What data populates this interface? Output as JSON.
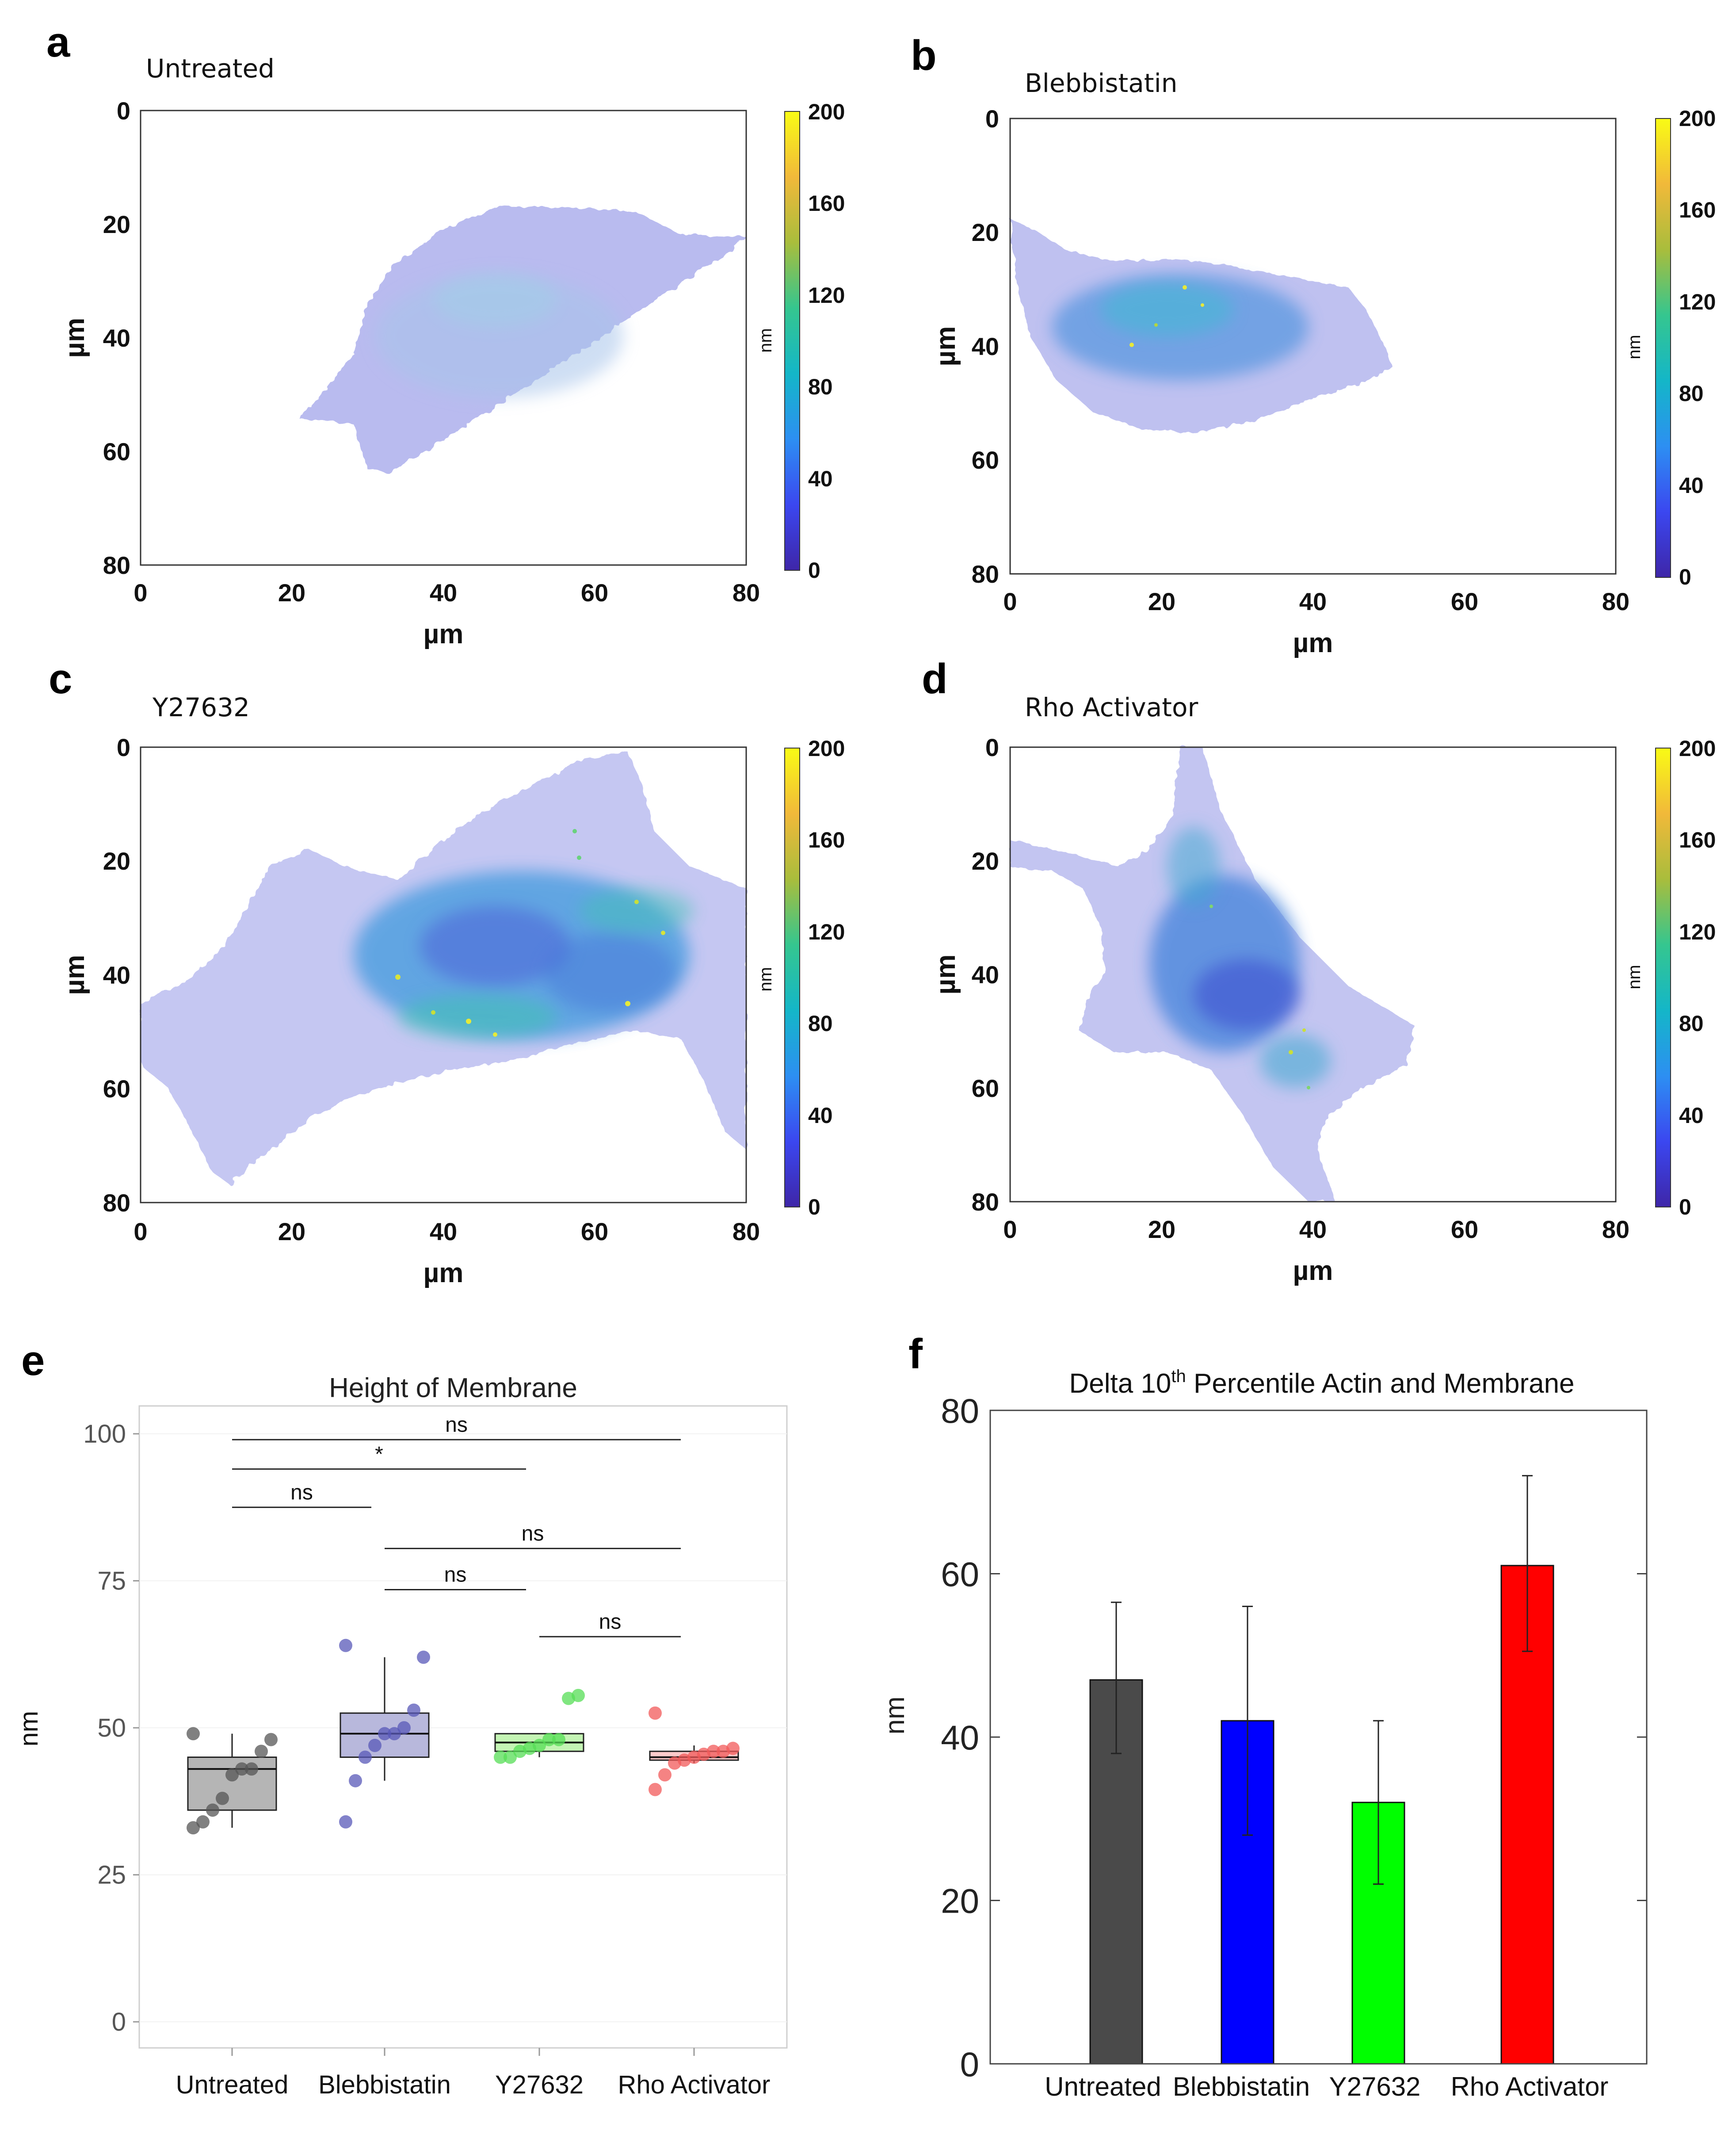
{
  "colormap": {
    "label": "nm",
    "ticks": [
      0,
      40,
      80,
      120,
      160,
      200
    ],
    "stops": [
      "#3e26a8",
      "#3b47f0",
      "#2d8ff2",
      "#14b6c8",
      "#35c68f",
      "#a9bd3c",
      "#f1b93a",
      "#f9fb15"
    ]
  },
  "maps": [
    {
      "letter": "a",
      "title": "Untreated",
      "xlabel": "µm",
      "ylabel": "µm",
      "ticks": [
        0,
        20,
        40,
        60,
        80
      ]
    },
    {
      "letter": "b",
      "title": "Blebbistatin",
      "xlabel": "µm",
      "ylabel": "µm",
      "ticks": [
        0,
        20,
        40,
        60,
        80
      ]
    },
    {
      "letter": "c",
      "title": "Y27632",
      "xlabel": "µm",
      "ylabel": "µm",
      "ticks": [
        0,
        20,
        40,
        60,
        80
      ]
    },
    {
      "letter": "d",
      "title": "Rho Activator",
      "xlabel": "µm",
      "ylabel": "µm",
      "ticks": [
        0,
        20,
        40,
        60,
        80
      ]
    }
  ],
  "chart_data": [
    {
      "panel": "e",
      "type": "box",
      "title": "Height of Membrane",
      "ylabel": "nm",
      "ylim": [
        0,
        100
      ],
      "yticks": [
        0,
        25,
        50,
        75,
        100
      ],
      "categories": [
        "Untreated",
        "Blebbistatin",
        "Y27632",
        "Rho Activator"
      ],
      "colors": [
        "#555555",
        "#5858b8",
        "#55dd55",
        "#f25a5a"
      ],
      "fills": [
        "#b5b5b5",
        "#b8b8dc",
        "#c4f5b4",
        "#fccbcb"
      ],
      "boxes": [
        {
          "q1": 36,
          "median": 43,
          "q3": 45,
          "whisker_low": 33,
          "whisker_high": 49,
          "points": [
            33,
            34,
            36,
            38,
            42,
            43,
            43,
            46,
            48,
            49
          ]
        },
        {
          "q1": 45,
          "median": 49,
          "q3": 52.5,
          "whisker_low": 41,
          "whisker_high": 62,
          "points": [
            34,
            41,
            45,
            47,
            49,
            49,
            50,
            53,
            62,
            64
          ]
        },
        {
          "q1": 46,
          "median": 47.5,
          "q3": 49,
          "whisker_low": 45,
          "whisker_high": 49,
          "points": [
            45,
            45,
            46,
            46.5,
            47,
            48,
            48,
            55,
            55.5
          ]
        },
        {
          "q1": 44.5,
          "median": 45,
          "q3": 46,
          "whisker_low": 44,
          "whisker_high": 47,
          "points": [
            39.5,
            42,
            44,
            44.5,
            45,
            45.5,
            46,
            46,
            46.5,
            52.5
          ]
        }
      ],
      "significance": [
        {
          "from": 0,
          "to": 3,
          "label": "ns",
          "y": 99
        },
        {
          "from": 0,
          "to": 2,
          "label": "*",
          "y": 94
        },
        {
          "from": 0,
          "to": 1,
          "label": "ns",
          "y": 87.5
        },
        {
          "from": 1,
          "to": 3,
          "label": "ns",
          "y": 80.5
        },
        {
          "from": 1,
          "to": 2,
          "label": "ns",
          "y": 73.5
        },
        {
          "from": 2,
          "to": 3,
          "label": "ns",
          "y": 65.5
        }
      ]
    },
    {
      "panel": "f",
      "type": "bar",
      "title": "Delta 10th Percentile Actin and Membrane",
      "title_parts": {
        "before": "Delta 10",
        "sup": "th",
        "after": " Percentile Actin and Membrane"
      },
      "ylabel": "nm",
      "ylim": [
        0,
        80
      ],
      "yticks": [
        0,
        20,
        40,
        60,
        80
      ],
      "categories": [
        "Untreated",
        "Blebbistatin",
        "Y27632",
        "Rho Activator"
      ],
      "values": [
        47,
        42,
        32,
        61
      ],
      "errors": [
        {
          "low": 38,
          "high": 56.5
        },
        {
          "low": 28,
          "high": 56
        },
        {
          "low": 22,
          "high": 42
        },
        {
          "low": 50.5,
          "high": 72
        }
      ],
      "colors": [
        "#4a4a4a",
        "#0000ff",
        "#00ff00",
        "#ff0000"
      ]
    }
  ]
}
